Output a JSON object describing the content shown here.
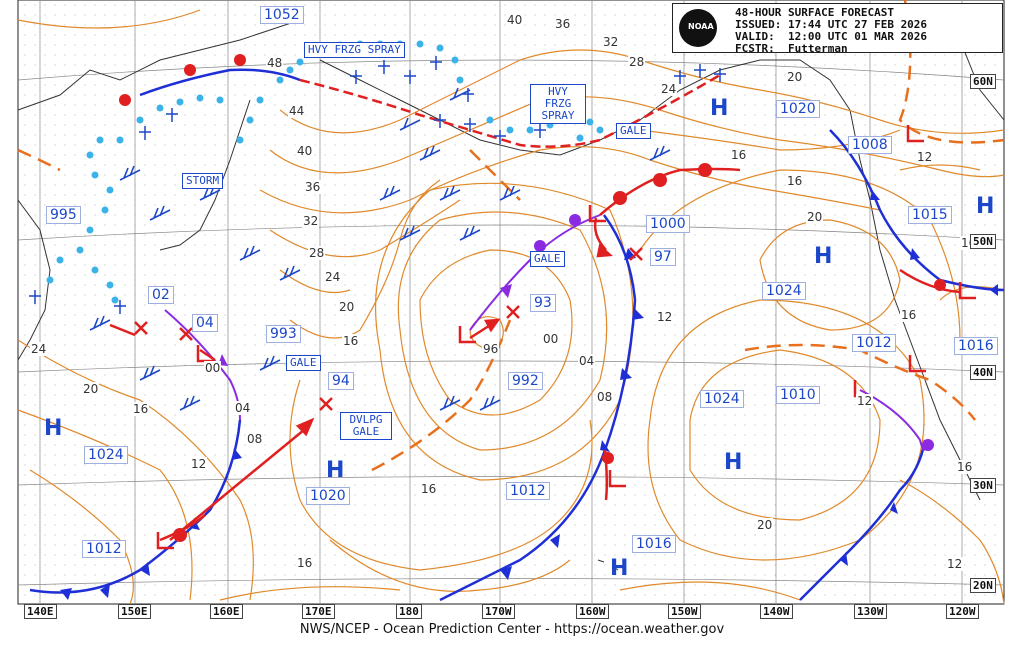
{
  "header": {
    "title": "48-HOUR SURFACE FORECAST",
    "issued": "ISSUED: 17:44 UTC 27 FEB 2026",
    "valid": "VALID:  12:00 UTC 01 MAR 2026",
    "forecaster": "FCSTR:  Futterman",
    "logo_text": "NOAA"
  },
  "footer": "NWS/NCEP - Ocean Prediction Center - https://ocean.weather.gov",
  "longitude_labels": [
    "140E",
    "150E",
    "160E",
    "170E",
    "180",
    "170W",
    "160W",
    "150W",
    "140W",
    "130W",
    "120W"
  ],
  "latitude_labels": [
    "60N",
    "50N",
    "40N",
    "30N",
    "20N"
  ],
  "warnings": [
    "HVY FRZG SPRAY",
    "HVY FRZG SPRAY",
    "STORM",
    "GALE",
    "GALE",
    "GALE",
    "DVLPG GALE"
  ],
  "pressure_centers": [
    {
      "value": "1052"
    },
    {
      "value": "1020"
    },
    {
      "value": "1008"
    },
    {
      "value": "1015"
    },
    {
      "value": "995"
    },
    {
      "value": "1000"
    },
    {
      "value": "97"
    },
    {
      "value": "1024"
    },
    {
      "value": "993"
    },
    {
      "value": "02"
    },
    {
      "value": "04"
    },
    {
      "value": "93"
    },
    {
      "value": "94"
    },
    {
      "value": "992"
    },
    {
      "value": "1024"
    },
    {
      "value": "1010"
    },
    {
      "value": "1012"
    },
    {
      "value": "1016"
    },
    {
      "value": "1024"
    },
    {
      "value": "1020"
    },
    {
      "value": "1012"
    },
    {
      "value": "1012"
    },
    {
      "value": "1016"
    }
  ],
  "isobar_labels": [
    "40",
    "36",
    "32",
    "28",
    "24",
    "20",
    "16",
    "12",
    "08",
    "04",
    "00",
    "96",
    "48",
    "44",
    "40",
    "36",
    "32",
    "28",
    "24",
    "20",
    "16",
    "16",
    "12",
    "12",
    "16",
    "20",
    "16",
    "12",
    "08",
    "04",
    "00",
    "16",
    "20",
    "16",
    "12",
    "16",
    "24",
    "20",
    "16"
  ],
  "high_symbol": "H"
}
